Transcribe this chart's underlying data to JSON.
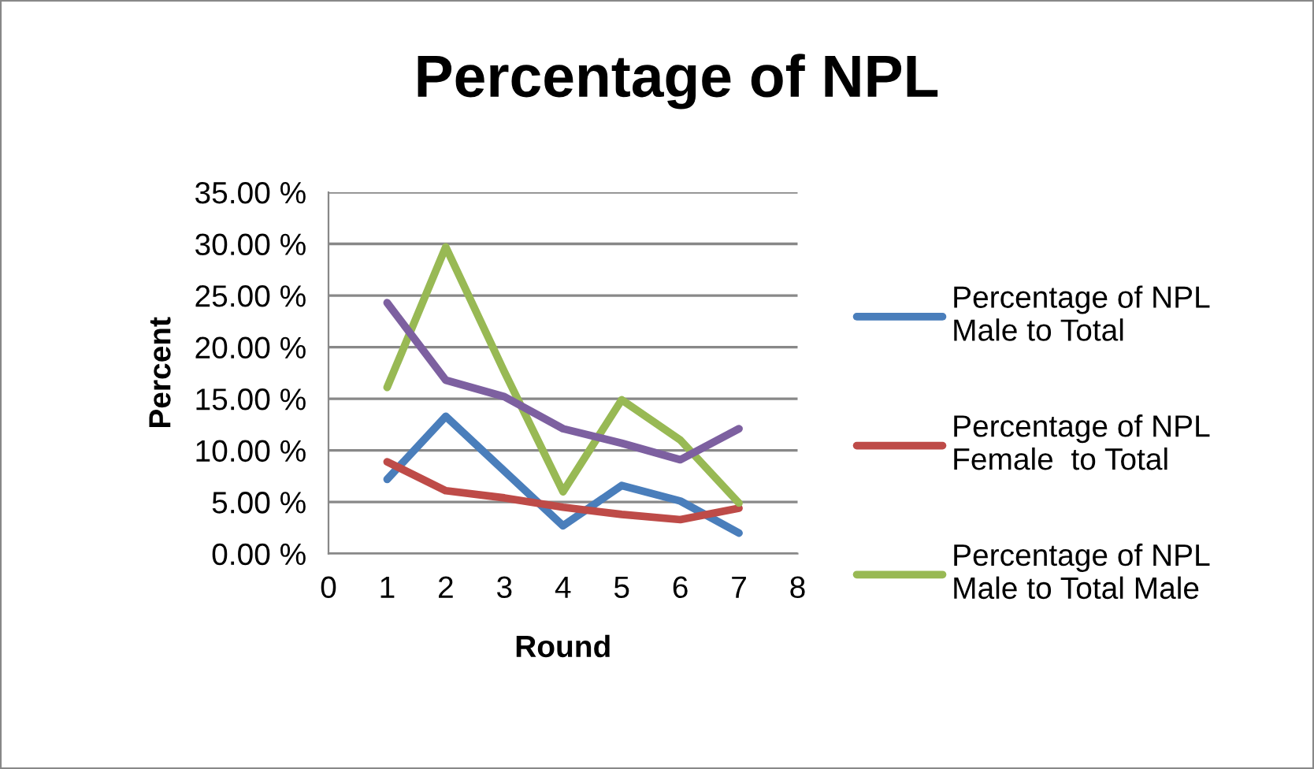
{
  "chart_data": {
    "type": "line",
    "title": "Percentage of NPL",
    "xlabel": "Round",
    "ylabel": "Percent",
    "x": [
      1,
      2,
      3,
      4,
      5,
      6,
      7
    ],
    "series": [
      {
        "name": "Percentage of NPL\nMale to Total",
        "color": "#4a7ebb",
        "values": [
          7.2,
          13.3,
          8.0,
          2.7,
          6.6,
          5.1,
          2.0
        ]
      },
      {
        "name": "Percentage of NPL\nFemale  to Total",
        "color": "#be4b48",
        "values": [
          8.9,
          6.1,
          5.4,
          4.5,
          3.8,
          3.3,
          4.4
        ]
      },
      {
        "name": "Percentage of NPL\nMale to Total Male",
        "color": "#98b954",
        "values": [
          16.1,
          29.7,
          17.6,
          6.0,
          14.9,
          11.0,
          4.9
        ]
      },
      {
        "color": "#7d60a0",
        "values": [
          24.3,
          16.8,
          15.2,
          12.1,
          10.7,
          9.1,
          12.1
        ]
      }
    ],
    "xlim": [
      0,
      8
    ],
    "xticks": [
      0,
      1,
      2,
      3,
      4,
      5,
      6,
      7,
      8
    ],
    "ylim": [
      0,
      35
    ],
    "yticks": [
      {
        "value": 0,
        "label": "0.00 %"
      },
      {
        "value": 5,
        "label": "5.00 %"
      },
      {
        "value": 10,
        "label": "10.00 %"
      },
      {
        "value": 15,
        "label": "15.00 %"
      },
      {
        "value": 20,
        "label": "20.00 %"
      },
      {
        "value": 25,
        "label": "25.00 %"
      },
      {
        "value": 30,
        "label": "30.00 %"
      },
      {
        "value": 35,
        "label": "35.00 %"
      }
    ],
    "grid": "y",
    "legend": "right",
    "marker": "none",
    "line_style": "solid"
  }
}
